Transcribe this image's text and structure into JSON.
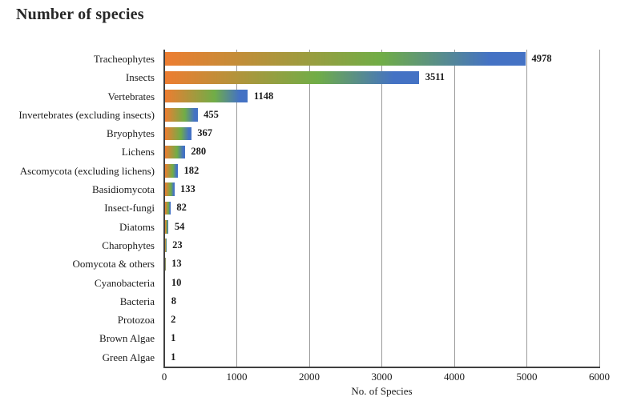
{
  "chart_data": {
    "type": "bar",
    "orientation": "horizontal",
    "title": "Number of species",
    "xlabel": "No. of Species",
    "categories": [
      "Tracheophytes",
      "Insects",
      "Vertebrates",
      "Invertebrates (excluding insects)",
      "Bryophytes",
      "Lichens",
      "Ascomycota (excluding lichens)",
      "Basidiomycota",
      "Insect-fungi",
      "Diatoms",
      "Charophytes",
      "Oomycota & others",
      "Cyanobacteria",
      "Bacteria",
      "Protozoa",
      "Brown Algae",
      "Green Algae"
    ],
    "values": [
      4978,
      3511,
      1148,
      455,
      367,
      280,
      182,
      133,
      82,
      54,
      23,
      13,
      10,
      8,
      2,
      1,
      1
    ],
    "data_labels": [
      "4978",
      "3511",
      "1148",
      "455",
      "367",
      "280",
      "182",
      "133",
      "82",
      "54",
      "23",
      "13",
      "10",
      "8",
      "2",
      "1",
      "1"
    ],
    "xlim": [
      0,
      6000
    ],
    "xticks": [
      0,
      1000,
      2000,
      3000,
      4000,
      5000,
      6000
    ],
    "grid": "vertical-behind-bars",
    "legend": "none",
    "colors": {
      "bar_gradient_start": "#ed7d31",
      "bar_gradient_mid": "#70ad47",
      "bar_gradient_end": "#4472c4",
      "gridline": "#9b9b9b",
      "axis_line": "#404040",
      "text": "#1b1b1b"
    }
  }
}
